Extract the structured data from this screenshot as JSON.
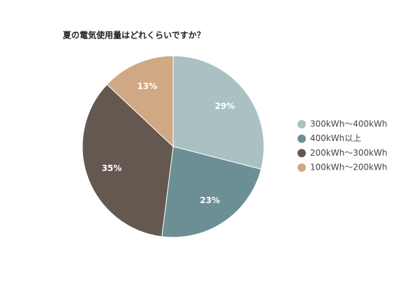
{
  "chart_data": {
    "type": "pie",
    "title": "夏の電気使用量はどれくらいですか？",
    "categories": [
      "300kWh〜400kWh",
      "400kWh以上",
      "200kWh〜300kWh",
      "100kWh〜200kWh"
    ],
    "values": [
      29,
      23,
      35,
      13
    ],
    "value_labels": [
      "29%",
      "23%",
      "35%",
      "13%"
    ],
    "colors": [
      "#a9c1c2",
      "#6b8f95",
      "#645850",
      "#d1a884"
    ],
    "legend": "right"
  }
}
